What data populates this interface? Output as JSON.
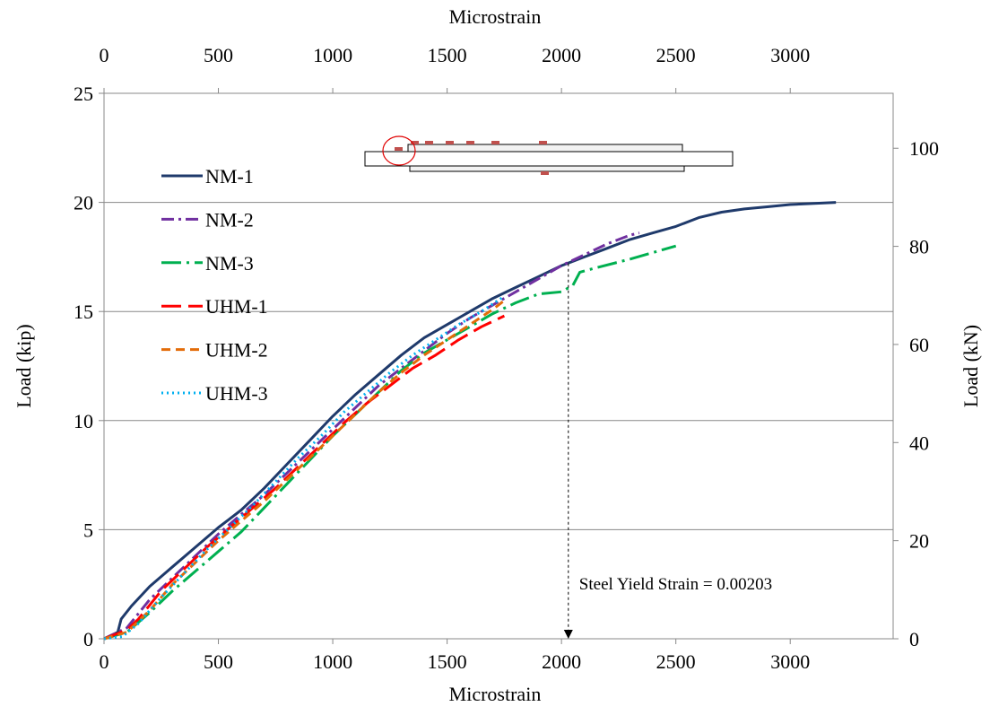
{
  "chart_data": {
    "type": "line",
    "xlabel": "Microstrain",
    "xlabel_top": "Microstrain",
    "ylabel": "Load (kip)",
    "ylabel_right": "Load (kN)",
    "xlim": [
      0,
      3450
    ],
    "ylim": [
      0,
      25
    ],
    "ylim_right": [
      0,
      111.2
    ],
    "x_ticks": [
      "0",
      "500",
      "1000",
      "1500",
      "2000",
      "2500",
      "3000"
    ],
    "x_tick_values": [
      0,
      500,
      1000,
      1500,
      2000,
      2500,
      3000
    ],
    "y_ticks": [
      "0",
      "5",
      "10",
      "15",
      "20",
      "25"
    ],
    "y_tick_values": [
      0,
      5,
      10,
      15,
      20,
      25
    ],
    "y_right_ticks": [
      "0",
      "20",
      "40",
      "60",
      "80",
      "100"
    ],
    "y_right_tick_values": [
      0,
      20,
      40,
      60,
      80,
      100
    ],
    "grid": true,
    "legend_position": "upper-left",
    "series": [
      {
        "name": "NM-1",
        "color": "#1f3a6b",
        "dash": "solid",
        "points": [
          [
            0,
            0
          ],
          [
            60,
            0.3
          ],
          [
            75,
            0.9
          ],
          [
            120,
            1.5
          ],
          [
            200,
            2.4
          ],
          [
            300,
            3.3
          ],
          [
            400,
            4.2
          ],
          [
            500,
            5.1
          ],
          [
            600,
            5.9
          ],
          [
            700,
            6.9
          ],
          [
            800,
            8.0
          ],
          [
            900,
            9.1
          ],
          [
            1000,
            10.2
          ],
          [
            1100,
            11.2
          ],
          [
            1200,
            12.1
          ],
          [
            1300,
            13.0
          ],
          [
            1400,
            13.8
          ],
          [
            1500,
            14.4
          ],
          [
            1600,
            15.0
          ],
          [
            1700,
            15.6
          ],
          [
            1800,
            16.1
          ],
          [
            1900,
            16.6
          ],
          [
            2000,
            17.1
          ],
          [
            2100,
            17.5
          ],
          [
            2200,
            17.9
          ],
          [
            2300,
            18.3
          ],
          [
            2400,
            18.6
          ],
          [
            2500,
            18.9
          ],
          [
            2600,
            19.3
          ],
          [
            2700,
            19.55
          ],
          [
            2800,
            19.7
          ],
          [
            2900,
            19.8
          ],
          [
            3000,
            19.9
          ],
          [
            3200,
            20.0
          ]
        ]
      },
      {
        "name": "NM-2",
        "color": "#7030a0",
        "dash": "dashdot",
        "points": [
          [
            0,
            0
          ],
          [
            100,
            0.5
          ],
          [
            200,
            1.8
          ],
          [
            300,
            2.8
          ],
          [
            400,
            3.8
          ],
          [
            500,
            4.8
          ],
          [
            600,
            5.7
          ],
          [
            700,
            6.6
          ],
          [
            800,
            7.6
          ],
          [
            900,
            8.6
          ],
          [
            1000,
            9.6
          ],
          [
            1100,
            10.6
          ],
          [
            1200,
            11.6
          ],
          [
            1300,
            12.4
          ],
          [
            1400,
            13.2
          ],
          [
            1500,
            14.0
          ],
          [
            1600,
            14.7
          ],
          [
            1700,
            15.3
          ],
          [
            1800,
            15.9
          ],
          [
            1900,
            16.5
          ],
          [
            2000,
            17.1
          ],
          [
            2100,
            17.6
          ],
          [
            2200,
            18.1
          ],
          [
            2300,
            18.5
          ],
          [
            2340,
            18.6
          ]
        ]
      },
      {
        "name": "NM-3",
        "color": "#00b050",
        "dash": "longdashdot",
        "points": [
          [
            0,
            0
          ],
          [
            100,
            0.3
          ],
          [
            200,
            1.2
          ],
          [
            300,
            2.2
          ],
          [
            400,
            3.1
          ],
          [
            500,
            4.0
          ],
          [
            600,
            4.9
          ],
          [
            700,
            6.0
          ],
          [
            800,
            7.1
          ],
          [
            900,
            8.2
          ],
          [
            1000,
            9.3
          ],
          [
            1100,
            10.3
          ],
          [
            1200,
            11.3
          ],
          [
            1300,
            12.3
          ],
          [
            1400,
            13.1
          ],
          [
            1500,
            13.7
          ],
          [
            1600,
            14.3
          ],
          [
            1700,
            14.9
          ],
          [
            1800,
            15.4
          ],
          [
            1900,
            15.8
          ],
          [
            2000,
            15.9
          ],
          [
            2050,
            16.2
          ],
          [
            2080,
            16.8
          ],
          [
            2150,
            17.0
          ],
          [
            2300,
            17.4
          ],
          [
            2400,
            17.7
          ],
          [
            2500,
            18.0
          ]
        ]
      },
      {
        "name": "UHM-1",
        "color": "#ff0000",
        "dash": "longdash",
        "points": [
          [
            0,
            0
          ],
          [
            100,
            0.4
          ],
          [
            150,
            0.9
          ],
          [
            250,
            2.2
          ],
          [
            350,
            3.2
          ],
          [
            450,
            4.2
          ],
          [
            550,
            5.1
          ],
          [
            650,
            6.0
          ],
          [
            750,
            6.9
          ],
          [
            850,
            7.9
          ],
          [
            950,
            8.9
          ],
          [
            1050,
            9.9
          ],
          [
            1150,
            10.8
          ],
          [
            1250,
            11.6
          ],
          [
            1350,
            12.4
          ],
          [
            1450,
            13.0
          ],
          [
            1550,
            13.7
          ],
          [
            1650,
            14.3
          ],
          [
            1750,
            14.8
          ]
        ]
      },
      {
        "name": "UHM-2",
        "color": "#e36c09",
        "dash": "dashed",
        "points": [
          [
            0,
            0
          ],
          [
            100,
            0.3
          ],
          [
            200,
            1.3
          ],
          [
            300,
            2.5
          ],
          [
            400,
            3.5
          ],
          [
            500,
            4.5
          ],
          [
            600,
            5.4
          ],
          [
            700,
            6.3
          ],
          [
            800,
            7.3
          ],
          [
            900,
            8.3
          ],
          [
            1000,
            9.3
          ],
          [
            1100,
            10.3
          ],
          [
            1200,
            11.3
          ],
          [
            1300,
            12.2
          ],
          [
            1400,
            13.0
          ],
          [
            1500,
            13.7
          ],
          [
            1600,
            14.4
          ],
          [
            1700,
            15.1
          ],
          [
            1750,
            15.5
          ]
        ]
      },
      {
        "name": "UHM-3",
        "color": "#00b0f0",
        "dash": "dotted",
        "points": [
          [
            0,
            0
          ],
          [
            80,
            0.1
          ],
          [
            150,
            0.7
          ],
          [
            250,
            1.9
          ],
          [
            350,
            3.0
          ],
          [
            450,
            4.1
          ],
          [
            550,
            5.1
          ],
          [
            650,
            6.1
          ],
          [
            750,
            7.2
          ],
          [
            850,
            8.3
          ],
          [
            950,
            9.3
          ],
          [
            1050,
            10.4
          ],
          [
            1150,
            11.3
          ],
          [
            1250,
            12.2
          ],
          [
            1350,
            13.0
          ],
          [
            1450,
            13.7
          ],
          [
            1550,
            14.4
          ],
          [
            1650,
            15.0
          ],
          [
            1750,
            15.7
          ]
        ]
      }
    ],
    "annotation": {
      "text": "Steel Yield Strain = 0.00203",
      "x": 2030,
      "y_from": 17.2,
      "y_to": 0
    }
  }
}
